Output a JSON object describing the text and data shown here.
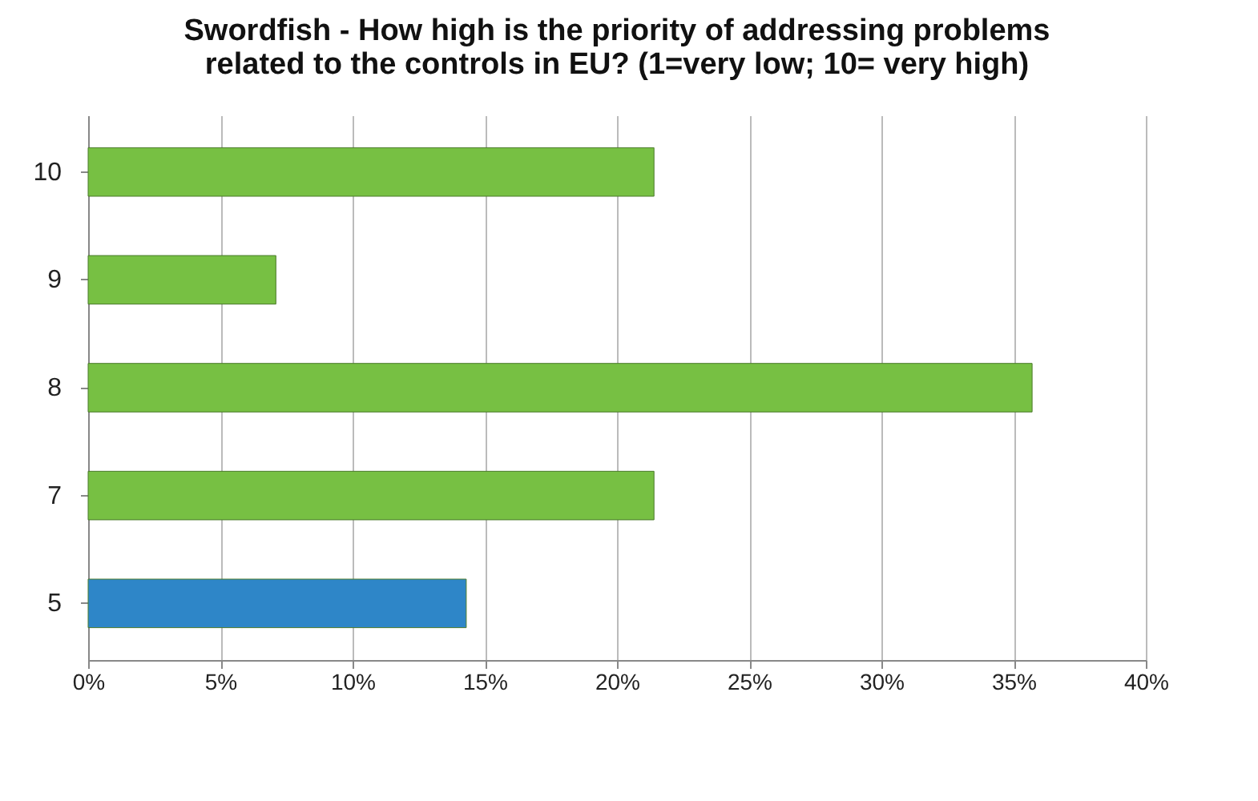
{
  "chart_data": {
    "type": "bar",
    "orientation": "horizontal",
    "title": "Swordfish - How high is the priority of addressing problems\nrelated to the controls in EU? (1=very low; 10= very high)",
    "categories": [
      "10",
      "9",
      "8",
      "7",
      "5"
    ],
    "values": [
      21.4,
      7.1,
      35.7,
      21.4,
      14.3
    ],
    "colors": [
      "#77c043",
      "#77c043",
      "#77c043",
      "#77c043",
      "#2e86c8"
    ],
    "xlim": [
      0,
      40
    ],
    "xticks": [
      {
        "value": 0,
        "label": "0%"
      },
      {
        "value": 5,
        "label": "5%"
      },
      {
        "value": 10,
        "label": "10%"
      },
      {
        "value": 15,
        "label": "15%"
      },
      {
        "value": 20,
        "label": "20%"
      },
      {
        "value": 25,
        "label": "25%"
      },
      {
        "value": 30,
        "label": "30%"
      },
      {
        "value": 35,
        "label": "35%"
      },
      {
        "value": 40,
        "label": "40%"
      }
    ],
    "grid": "x"
  }
}
